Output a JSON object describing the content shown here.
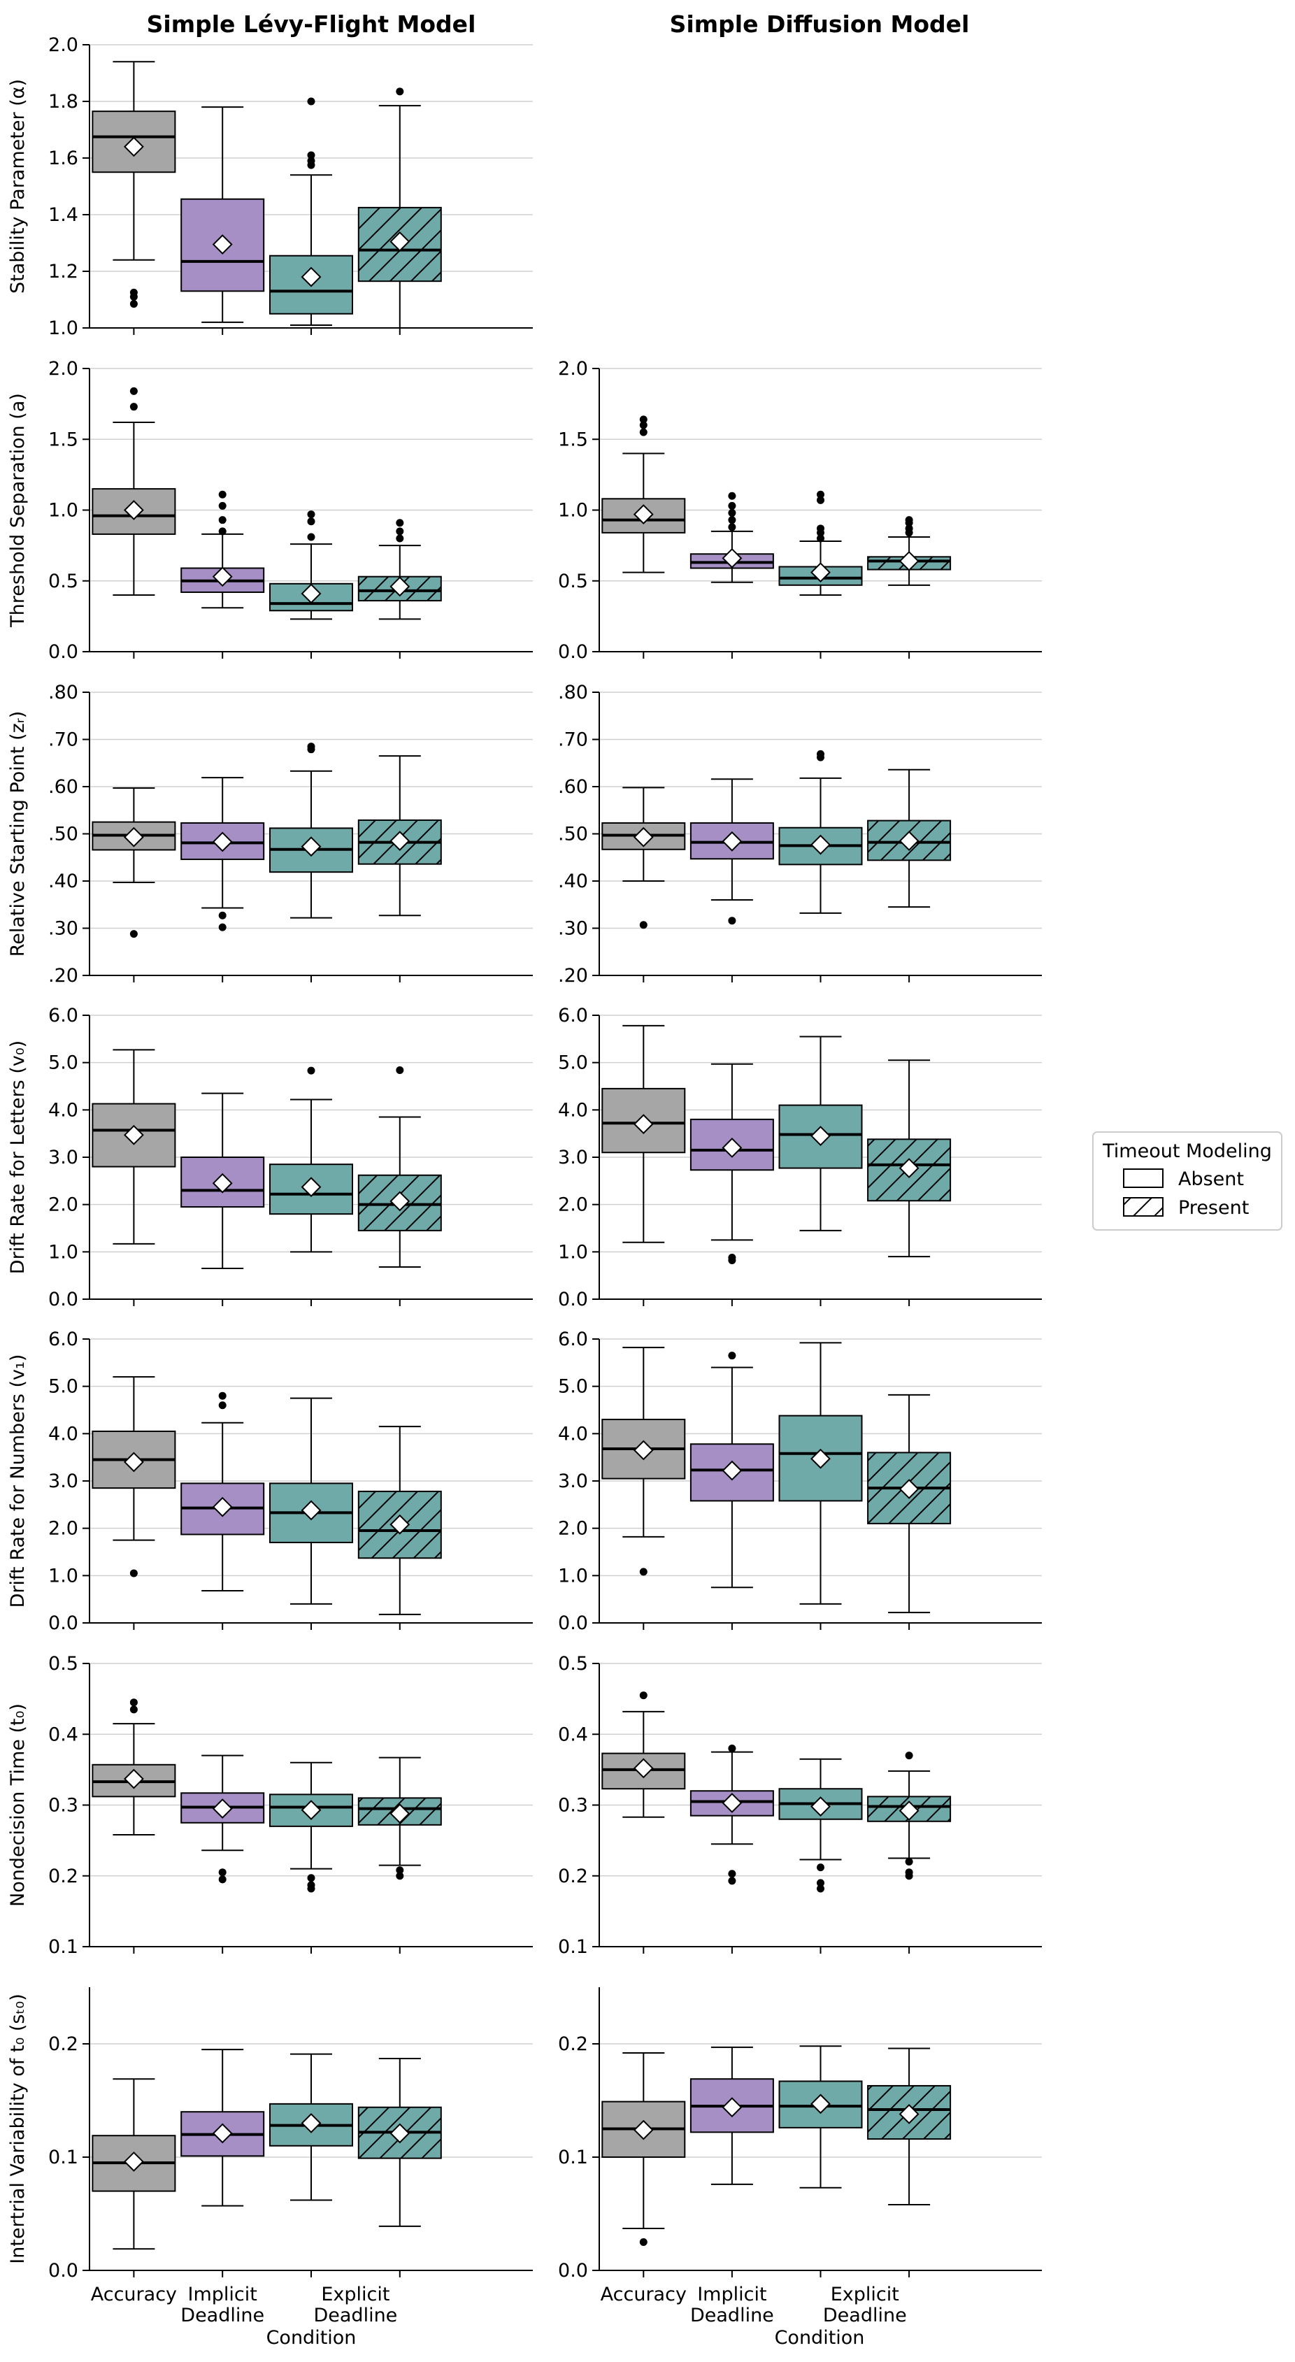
{
  "colors": {
    "accuracy": "#a6a6a6",
    "implicit": "#a58fc4",
    "explicit": "#6fa9a8",
    "grid": "#d0d0d0"
  },
  "column_titles": [
    "Simple Lévy-Flight Model",
    "Simple Diffusion Model"
  ],
  "xlabel": "Condition",
  "categories": [
    [
      "Accuracy"
    ],
    [
      "Implicit",
      "Deadline"
    ],
    [
      "Explicit",
      "Deadline"
    ]
  ],
  "legend": {
    "title": "Timeout Modeling",
    "items": [
      "Absent",
      "Present"
    ]
  },
  "chart_data": {
    "type": "box",
    "series": [
      {
        "condition": "Accuracy",
        "timeout": "Absent",
        "color": "#a6a6a6"
      },
      {
        "condition": "Implicit Deadline",
        "timeout": "Absent",
        "color": "#a58fc4"
      },
      {
        "condition": "Explicit Deadline",
        "timeout": "Absent",
        "color": "#6fa9a8"
      },
      {
        "condition": "Explicit Deadline",
        "timeout": "Present",
        "color": "#6fa9a8"
      }
    ],
    "rows": [
      {
        "ylabel": "Stability Parameter (α)",
        "yticks": [
          "1.0",
          "1.2",
          "1.4",
          "1.6",
          "1.8",
          "2.0"
        ],
        "ylim": [
          1.0,
          2.0
        ],
        "panels": [
          {
            "boxes": [
              {
                "whislo": 1.24,
                "q1": 1.55,
                "med": 1.675,
                "q3": 1.765,
                "whishi": 1.94,
                "mean": 1.64,
                "fliers": [
                  1.085,
                  1.11,
                  1.125
                ]
              },
              {
                "whislo": 1.02,
                "q1": 1.13,
                "med": 1.235,
                "q3": 1.455,
                "whishi": 1.78,
                "mean": 1.295,
                "fliers": []
              },
              {
                "whislo": 1.01,
                "q1": 1.05,
                "med": 1.13,
                "q3": 1.255,
                "whishi": 1.54,
                "mean": 1.18,
                "fliers": [
                  1.575,
                  1.59,
                  1.61,
                  1.8
                ]
              },
              {
                "whislo": 1.0,
                "q1": 1.165,
                "med": 1.275,
                "q3": 1.425,
                "whishi": 1.785,
                "mean": 1.305,
                "fliers": [
                  1.835
                ]
              }
            ]
          },
          null
        ]
      },
      {
        "ylabel": "Threshold Separation (a)",
        "yticks": [
          "0.0",
          "0.5",
          "1.0",
          "1.5",
          "2.0"
        ],
        "ylim": [
          0.0,
          2.0
        ],
        "panels": [
          {
            "boxes": [
              {
                "whislo": 0.4,
                "q1": 0.83,
                "med": 0.96,
                "q3": 1.15,
                "whishi": 1.62,
                "mean": 1.0,
                "fliers": [
                  1.73,
                  1.84
                ]
              },
              {
                "whislo": 0.31,
                "q1": 0.42,
                "med": 0.5,
                "q3": 0.59,
                "whishi": 0.83,
                "mean": 0.53,
                "fliers": [
                  0.85,
                  0.93,
                  1.03,
                  1.11
                ]
              },
              {
                "whislo": 0.23,
                "q1": 0.29,
                "med": 0.34,
                "q3": 0.48,
                "whishi": 0.76,
                "mean": 0.41,
                "fliers": [
                  0.81,
                  0.92,
                  0.97
                ]
              },
              {
                "whislo": 0.23,
                "q1": 0.36,
                "med": 0.43,
                "q3": 0.53,
                "whishi": 0.75,
                "mean": 0.46,
                "fliers": [
                  0.8,
                  0.85,
                  0.91
                ]
              }
            ]
          },
          {
            "boxes": [
              {
                "whislo": 0.56,
                "q1": 0.84,
                "med": 0.93,
                "q3": 1.08,
                "whishi": 1.4,
                "mean": 0.97,
                "fliers": [
                  1.55,
                  1.6,
                  1.64
                ]
              },
              {
                "whislo": 0.49,
                "q1": 0.59,
                "med": 0.63,
                "q3": 0.69,
                "whishi": 0.85,
                "mean": 0.66,
                "fliers": [
                  0.88,
                  0.93,
                  0.98,
                  1.03,
                  1.1
                ]
              },
              {
                "whislo": 0.4,
                "q1": 0.47,
                "med": 0.52,
                "q3": 0.6,
                "whishi": 0.78,
                "mean": 0.56,
                "fliers": [
                  0.8,
                  0.84,
                  0.87,
                  1.07,
                  1.11
                ]
              },
              {
                "whislo": 0.47,
                "q1": 0.58,
                "med": 0.64,
                "q3": 0.67,
                "whishi": 0.81,
                "mean": 0.64,
                "fliers": [
                  0.84,
                  0.87,
                  0.91,
                  0.93
                ]
              }
            ]
          }
        ]
      },
      {
        "ylabel": "Relative Starting Point (zᵣ)",
        "yticks": [
          ".20",
          ".30",
          ".40",
          ".50",
          ".60",
          ".70",
          ".80"
        ],
        "ylim": [
          0.2,
          0.8
        ],
        "panels": [
          {
            "boxes": [
              {
                "whislo": 0.397,
                "q1": 0.466,
                "med": 0.497,
                "q3": 0.525,
                "whishi": 0.597,
                "mean": 0.493,
                "fliers": [
                  0.288
                ]
              },
              {
                "whislo": 0.343,
                "q1": 0.446,
                "med": 0.481,
                "q3": 0.523,
                "whishi": 0.619,
                "mean": 0.483,
                "fliers": [
                  0.302,
                  0.327
                ]
              },
              {
                "whislo": 0.322,
                "q1": 0.419,
                "med": 0.467,
                "q3": 0.512,
                "whishi": 0.633,
                "mean": 0.473,
                "fliers": [
                  0.679,
                  0.685
                ]
              },
              {
                "whislo": 0.327,
                "q1": 0.436,
                "med": 0.482,
                "q3": 0.529,
                "whishi": 0.665,
                "mean": 0.485,
                "fliers": []
              }
            ]
          },
          {
            "boxes": [
              {
                "whislo": 0.4,
                "q1": 0.467,
                "med": 0.497,
                "q3": 0.523,
                "whishi": 0.598,
                "mean": 0.493,
                "fliers": [
                  0.307
                ]
              },
              {
                "whislo": 0.36,
                "q1": 0.447,
                "med": 0.482,
                "q3": 0.523,
                "whishi": 0.616,
                "mean": 0.484,
                "fliers": [
                  0.316
                ]
              },
              {
                "whislo": 0.332,
                "q1": 0.435,
                "med": 0.475,
                "q3": 0.513,
                "whishi": 0.618,
                "mean": 0.477,
                "fliers": [
                  0.662,
                  0.669
                ]
              },
              {
                "whislo": 0.345,
                "q1": 0.444,
                "med": 0.482,
                "q3": 0.528,
                "whishi": 0.636,
                "mean": 0.485,
                "fliers": []
              }
            ]
          }
        ]
      },
      {
        "ylabel": "Drift Rate for Letters (v₀)",
        "yticks": [
          "0.0",
          "1.0",
          "2.0",
          "3.0",
          "4.0",
          "5.0",
          "6.0"
        ],
        "ylim": [
          0.0,
          6.0
        ],
        "panels": [
          {
            "boxes": [
              {
                "whislo": 1.17,
                "q1": 2.8,
                "med": 3.57,
                "q3": 4.13,
                "whishi": 5.27,
                "mean": 3.47,
                "fliers": []
              },
              {
                "whislo": 0.65,
                "q1": 1.95,
                "med": 2.3,
                "q3": 3.0,
                "whishi": 4.35,
                "mean": 2.45,
                "fliers": []
              },
              {
                "whislo": 1.0,
                "q1": 1.8,
                "med": 2.22,
                "q3": 2.85,
                "whishi": 4.22,
                "mean": 2.37,
                "fliers": [
                  4.83
                ]
              },
              {
                "whislo": 0.68,
                "q1": 1.45,
                "med": 2.0,
                "q3": 2.62,
                "whishi": 3.85,
                "mean": 2.07,
                "fliers": [
                  4.84
                ]
              }
            ]
          },
          {
            "boxes": [
              {
                "whislo": 1.2,
                "q1": 3.1,
                "med": 3.72,
                "q3": 4.45,
                "whishi": 5.78,
                "mean": 3.7,
                "fliers": []
              },
              {
                "whislo": 1.25,
                "q1": 2.73,
                "med": 3.15,
                "q3": 3.8,
                "whishi": 4.97,
                "mean": 3.2,
                "fliers": [
                  0.82,
                  0.88
                ]
              },
              {
                "whislo": 1.45,
                "q1": 2.77,
                "med": 3.48,
                "q3": 4.1,
                "whishi": 5.55,
                "mean": 3.45,
                "fliers": []
              },
              {
                "whislo": 0.9,
                "q1": 2.08,
                "med": 2.84,
                "q3": 3.38,
                "whishi": 5.05,
                "mean": 2.77,
                "fliers": []
              }
            ]
          }
        ]
      },
      {
        "ylabel": "Drift Rate for Numbers (v₁)",
        "yticks": [
          "0.0",
          "1.0",
          "2.0",
          "3.0",
          "4.0",
          "5.0",
          "6.0"
        ],
        "ylim": [
          0.0,
          6.0
        ],
        "panels": [
          {
            "boxes": [
              {
                "whislo": 1.75,
                "q1": 2.85,
                "med": 3.45,
                "q3": 4.05,
                "whishi": 5.2,
                "mean": 3.4,
                "fliers": [
                  1.05
                ]
              },
              {
                "whislo": 0.68,
                "q1": 1.87,
                "med": 2.43,
                "q3": 2.95,
                "whishi": 4.23,
                "mean": 2.45,
                "fliers": [
                  4.6,
                  4.8
                ]
              },
              {
                "whislo": 0.4,
                "q1": 1.7,
                "med": 2.33,
                "q3": 2.95,
                "whishi": 4.75,
                "mean": 2.38,
                "fliers": []
              },
              {
                "whislo": 0.18,
                "q1": 1.37,
                "med": 1.95,
                "q3": 2.78,
                "whishi": 4.15,
                "mean": 2.08,
                "fliers": []
              }
            ]
          },
          {
            "boxes": [
              {
                "whislo": 1.82,
                "q1": 3.05,
                "med": 3.68,
                "q3": 4.3,
                "whishi": 5.82,
                "mean": 3.65,
                "fliers": [
                  1.08
                ]
              },
              {
                "whislo": 0.75,
                "q1": 2.58,
                "med": 3.23,
                "q3": 3.78,
                "whishi": 5.4,
                "mean": 3.22,
                "fliers": [
                  5.65
                ]
              },
              {
                "whislo": 0.4,
                "q1": 2.58,
                "med": 3.58,
                "q3": 4.38,
                "whishi": 5.92,
                "mean": 3.47,
                "fliers": []
              },
              {
                "whislo": 0.22,
                "q1": 2.1,
                "med": 2.85,
                "q3": 3.6,
                "whishi": 4.82,
                "mean": 2.83,
                "fliers": []
              }
            ]
          }
        ]
      },
      {
        "ylabel": "Nondecision Time (t₀)",
        "yticks": [
          "0.1",
          "0.2",
          "0.3",
          "0.4",
          "0.5"
        ],
        "ylim": [
          0.1,
          0.5
        ],
        "panels": [
          {
            "boxes": [
              {
                "whislo": 0.258,
                "q1": 0.312,
                "med": 0.333,
                "q3": 0.357,
                "whishi": 0.415,
                "mean": 0.337,
                "fliers": [
                  0.435,
                  0.445
                ]
              },
              {
                "whislo": 0.236,
                "q1": 0.275,
                "med": 0.297,
                "q3": 0.317,
                "whishi": 0.37,
                "mean": 0.295,
                "fliers": [
                  0.195,
                  0.205
                ]
              },
              {
                "whislo": 0.21,
                "q1": 0.27,
                "med": 0.297,
                "q3": 0.315,
                "whishi": 0.36,
                "mean": 0.293,
                "fliers": [
                  0.182,
                  0.187,
                  0.197
                ]
              },
              {
                "whislo": 0.215,
                "q1": 0.272,
                "med": 0.295,
                "q3": 0.31,
                "whishi": 0.367,
                "mean": 0.288,
                "fliers": [
                  0.2,
                  0.208
                ]
              }
            ]
          },
          {
            "boxes": [
              {
                "whislo": 0.283,
                "q1": 0.323,
                "med": 0.35,
                "q3": 0.373,
                "whishi": 0.432,
                "mean": 0.352,
                "fliers": [
                  0.455
                ]
              },
              {
                "whislo": 0.245,
                "q1": 0.285,
                "med": 0.305,
                "q3": 0.32,
                "whishi": 0.375,
                "mean": 0.303,
                "fliers": [
                  0.193,
                  0.203,
                  0.38
                ]
              },
              {
                "whislo": 0.223,
                "q1": 0.28,
                "med": 0.302,
                "q3": 0.323,
                "whishi": 0.365,
                "mean": 0.298,
                "fliers": [
                  0.182,
                  0.19,
                  0.212
                ]
              },
              {
                "whislo": 0.225,
                "q1": 0.277,
                "med": 0.298,
                "q3": 0.312,
                "whishi": 0.348,
                "mean": 0.292,
                "fliers": [
                  0.2,
                  0.205,
                  0.22,
                  0.37
                ]
              }
            ]
          }
        ]
      },
      {
        "ylabel": "Intertrial Variability of t₀ (sₜ₀)",
        "yticks": [
          "0.0",
          "0.1",
          "0.2"
        ],
        "ylim": [
          0.0,
          0.25
        ],
        "panels": [
          {
            "boxes": [
              {
                "whislo": 0.019,
                "q1": 0.07,
                "med": 0.095,
                "q3": 0.119,
                "whishi": 0.169,
                "mean": 0.096,
                "fliers": []
              },
              {
                "whislo": 0.057,
                "q1": 0.101,
                "med": 0.12,
                "q3": 0.14,
                "whishi": 0.195,
                "mean": 0.121,
                "fliers": []
              },
              {
                "whislo": 0.062,
                "q1": 0.11,
                "med": 0.128,
                "q3": 0.147,
                "whishi": 0.191,
                "mean": 0.13,
                "fliers": []
              },
              {
                "whislo": 0.039,
                "q1": 0.099,
                "med": 0.122,
                "q3": 0.144,
                "whishi": 0.187,
                "mean": 0.121,
                "fliers": []
              }
            ]
          },
          {
            "boxes": [
              {
                "whislo": 0.037,
                "q1": 0.1,
                "med": 0.125,
                "q3": 0.149,
                "whishi": 0.192,
                "mean": 0.124,
                "fliers": [
                  0.025
                ]
              },
              {
                "whislo": 0.076,
                "q1": 0.122,
                "med": 0.145,
                "q3": 0.169,
                "whishi": 0.197,
                "mean": 0.144,
                "fliers": []
              },
              {
                "whislo": 0.073,
                "q1": 0.126,
                "med": 0.145,
                "q3": 0.167,
                "whishi": 0.198,
                "mean": 0.147,
                "fliers": []
              },
              {
                "whislo": 0.058,
                "q1": 0.116,
                "med": 0.142,
                "q3": 0.163,
                "whishi": 0.196,
                "mean": 0.138,
                "fliers": []
              }
            ]
          }
        ]
      }
    ]
  }
}
